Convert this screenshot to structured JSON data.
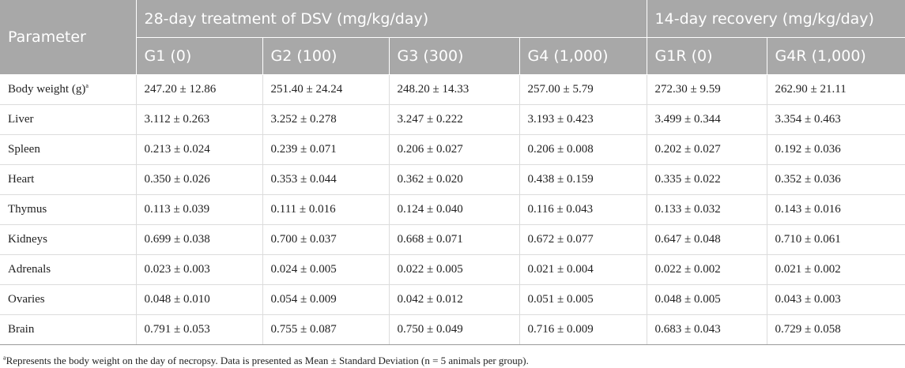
{
  "table": {
    "header_row1": {
      "parameter": "Parameter",
      "group_treatment": "28-day treatment of DSV (mg/kg/day)",
      "group_recovery": "14-day recovery (mg/kg/day)"
    },
    "columns": [
      "G1 (0)",
      "G2 (100)",
      "G3 (300)",
      "G4 (1,000)",
      "G1R (0)",
      "G4R (1,000)"
    ],
    "rows": [
      {
        "parameter": "Body weight (g)",
        "note": "a",
        "values": [
          "247.20 ± 12.86",
          "251.40 ± 24.24",
          "248.20 ± 14.33",
          "257.00 ± 5.79",
          "272.30 ± 9.59",
          "262.90 ± 21.11"
        ]
      },
      {
        "parameter": "Liver",
        "note": "",
        "values": [
          "3.112 ± 0.263",
          "3.252 ± 0.278",
          "3.247 ± 0.222",
          "3.193 ± 0.423",
          "3.499 ± 0.344",
          "3.354 ± 0.463"
        ]
      },
      {
        "parameter": "Spleen",
        "note": "",
        "values": [
          "0.213 ± 0.024",
          "0.239 ± 0.071",
          "0.206 ± 0.027",
          "0.206 ± 0.008",
          "0.202 ± 0.027",
          "0.192 ± 0.036"
        ]
      },
      {
        "parameter": "Heart",
        "note": "",
        "values": [
          "0.350 ± 0.026",
          "0.353 ± 0.044",
          "0.362 ± 0.020",
          "0.438 ± 0.159",
          "0.335 ± 0.022",
          "0.352 ± 0.036"
        ]
      },
      {
        "parameter": "Thymus",
        "note": "",
        "values": [
          "0.113 ± 0.039",
          "0.111 ± 0.016",
          "0.124 ± 0.040",
          "0.116 ± 0.043",
          "0.133 ± 0.032",
          "0.143 ± 0.016"
        ]
      },
      {
        "parameter": "Kidneys",
        "note": "",
        "values": [
          "0.699 ± 0.038",
          "0.700 ± 0.037",
          "0.668 ± 0.071",
          "0.672 ± 0.077",
          "0.647 ± 0.048",
          "0.710 ± 0.061"
        ]
      },
      {
        "parameter": "Adrenals",
        "note": "",
        "values": [
          "0.023 ± 0.003",
          "0.024 ± 0.005",
          "0.022 ± 0.005",
          "0.021 ± 0.004",
          "0.022 ± 0.002",
          "0.021 ± 0.002"
        ]
      },
      {
        "parameter": "Ovaries",
        "note": "",
        "values": [
          "0.048 ± 0.010",
          "0.054 ± 0.009",
          "0.042 ± 0.012",
          "0.051 ± 0.005",
          "0.048 ± 0.005",
          "0.043 ± 0.003"
        ]
      },
      {
        "parameter": "Brain",
        "note": "",
        "values": [
          "0.791 ± 0.053",
          "0.755 ± 0.087",
          "0.750 ± 0.049",
          "0.716 ± 0.009",
          "0.683 ± 0.043",
          "0.729 ± 0.058"
        ]
      }
    ]
  },
  "footnote": {
    "marker": "a",
    "text": "Represents the body weight on the day of necropsy. Data is presented as Mean ± Standard Deviation (n = 5 animals per group)."
  },
  "colors": {
    "header_bg": "#a8a8a8",
    "header_text": "#ffffff",
    "body_text": "#222222",
    "grid_line": "#dcdcdc"
  }
}
